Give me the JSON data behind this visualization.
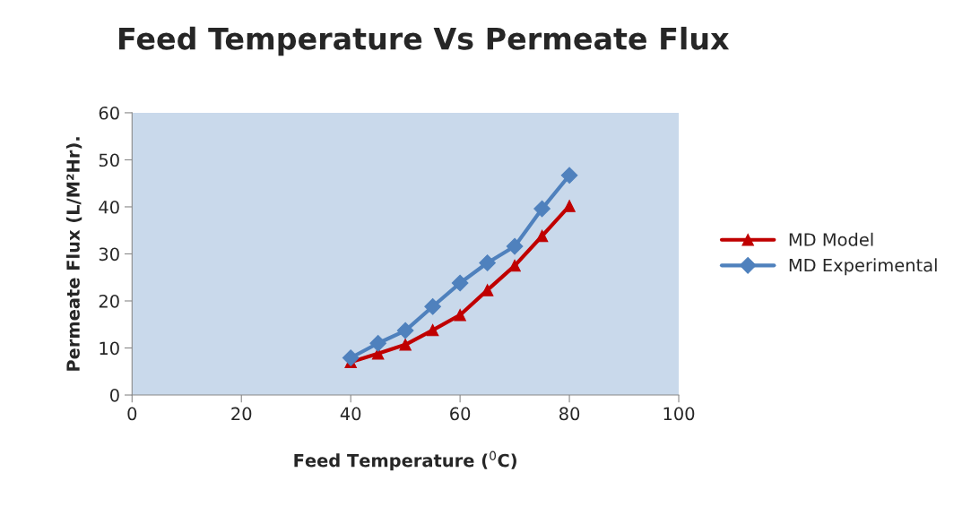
{
  "chart_data": {
    "type": "line",
    "title": "Feed Temperature Vs Permeate Flux",
    "xlabel": "Feed Temperature ($^{0}$C)",
    "ylabel": "Permeate Flux (L/M²Hr).",
    "x": [
      40,
      45,
      50,
      55,
      60,
      65,
      70,
      75,
      80
    ],
    "series": [
      {
        "name": "MD Model",
        "color": "#c00000",
        "marker": "triangle",
        "values": [
          7.0,
          8.8,
          10.7,
          13.8,
          17.0,
          22.3,
          27.5,
          33.8,
          40.2
        ]
      },
      {
        "name": "MD Experimental",
        "color": "#4f81bd",
        "marker": "diamond",
        "values": [
          7.9,
          11.0,
          13.7,
          18.8,
          23.8,
          28.1,
          31.6,
          39.6,
          46.7
        ]
      }
    ],
    "xlim": [
      0,
      100
    ],
    "xticks": [
      0,
      20,
      40,
      60,
      80,
      100
    ],
    "ylim": [
      0,
      60
    ],
    "yticks": [
      0,
      10,
      20,
      30,
      40,
      50,
      60
    ],
    "grid": false,
    "legend": "right",
    "line_style": "solid"
  }
}
